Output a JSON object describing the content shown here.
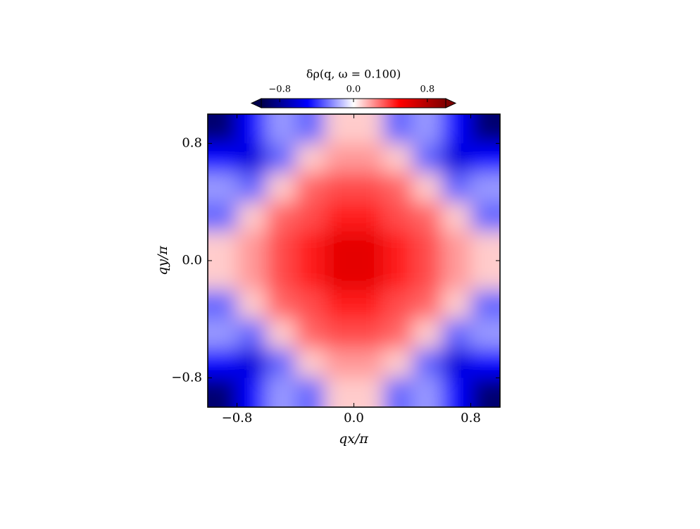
{
  "chart_data": {
    "type": "heatmap",
    "colorbar_title": "δρ(q, ω = 0.100)",
    "xlabel": "qx/π",
    "ylabel": "qy/π",
    "x": [
      -0.9,
      -0.7,
      -0.5,
      -0.3,
      -0.1,
      0.1,
      0.3,
      0.5,
      0.7,
      0.9
    ],
    "y": [
      0.9,
      0.7,
      0.5,
      0.3,
      0.1,
      -0.1,
      -0.3,
      -0.5,
      -0.7,
      -0.9
    ],
    "values": [
      [
        -0.9,
        -0.5,
        -0.2,
        -0.3,
        0.1,
        0.1,
        -0.3,
        -0.2,
        -0.5,
        -0.9
      ],
      [
        -0.5,
        -0.6,
        -0.3,
        0.1,
        0.2,
        0.2,
        0.1,
        -0.3,
        -0.6,
        -0.5
      ],
      [
        -0.2,
        -0.3,
        0.1,
        0.3,
        0.35,
        0.35,
        0.3,
        0.1,
        -0.3,
        -0.2
      ],
      [
        -0.3,
        0.1,
        0.3,
        0.35,
        0.45,
        0.45,
        0.35,
        0.3,
        0.1,
        -0.3
      ],
      [
        0.1,
        0.2,
        0.35,
        0.45,
        0.6,
        0.6,
        0.45,
        0.35,
        0.2,
        0.1
      ],
      [
        0.1,
        0.2,
        0.35,
        0.45,
        0.6,
        0.6,
        0.45,
        0.35,
        0.2,
        0.1
      ],
      [
        -0.3,
        0.1,
        0.3,
        0.35,
        0.45,
        0.45,
        0.35,
        0.3,
        0.1,
        -0.3
      ],
      [
        -0.2,
        -0.3,
        0.1,
        0.3,
        0.35,
        0.35,
        0.3,
        0.1,
        -0.3,
        -0.2
      ],
      [
        -0.5,
        -0.6,
        -0.3,
        0.1,
        0.2,
        0.2,
        0.1,
        -0.3,
        -0.6,
        -0.5
      ],
      [
        -0.9,
        -0.5,
        -0.2,
        -0.3,
        0.1,
        0.1,
        -0.3,
        -0.2,
        -0.5,
        -0.9
      ]
    ],
    "xlim": [
      -1,
      1
    ],
    "ylim": [
      -1,
      1
    ],
    "xticks": [
      {
        "value": -0.8,
        "label": "−0.8"
      },
      {
        "value": 0,
        "label": "0.0"
      },
      0.8
    ],
    "yticks": [
      {
        "value": -0.8,
        "label": "−0.8"
      },
      {
        "value": 0,
        "label": "0.0"
      },
      0.8
    ],
    "clim": [
      -1,
      1
    ],
    "cticks": [
      {
        "value": -0.8,
        "label": "−0.8"
      },
      {
        "value": 0,
        "label": "0.0"
      },
      0.8
    ],
    "colormap": [
      "#00004c",
      "#0000ff",
      "#ffffff",
      "#ff0000",
      "#7f0000"
    ]
  }
}
